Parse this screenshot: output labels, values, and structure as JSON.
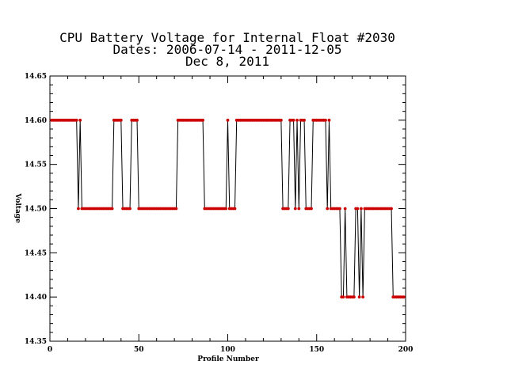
{
  "chart_data": {
    "type": "line",
    "title_lines": [
      "CPU Battery Voltage for Internal Float #2030",
      "Dates:  2006-07-14 -  2011-12-05",
      "Dec  8, 2011"
    ],
    "xlabel": "Profile Number",
    "ylabel": "Voltage",
    "xlim": [
      0,
      200
    ],
    "ylim": [
      14.35,
      14.65
    ],
    "x_ticks": [
      0,
      50,
      100,
      150,
      200
    ],
    "x_tick_labels": [
      "0",
      "50",
      "100",
      "150",
      "200"
    ],
    "y_ticks": [
      14.35,
      14.4,
      14.45,
      14.5,
      14.55,
      14.6,
      14.65
    ],
    "y_tick_labels": [
      "14.35",
      "14.40",
      "14.45",
      "14.50",
      "14.55",
      "14.60",
      "14.65"
    ],
    "grid": false,
    "legend": "none",
    "colors": {
      "line": "#000000",
      "marker": "#cc0000",
      "axis": "#000000"
    },
    "series": [
      {
        "segments": [
          [
            1,
            15,
            14.6
          ],
          [
            16,
            16,
            14.5
          ],
          [
            17,
            17,
            14.6
          ],
          [
            18,
            35,
            14.5
          ],
          [
            36,
            40,
            14.6
          ],
          [
            41,
            45,
            14.5
          ],
          [
            46,
            49,
            14.6
          ],
          [
            50,
            71,
            14.5
          ],
          [
            72,
            86,
            14.6
          ],
          [
            87,
            99,
            14.5
          ],
          [
            100,
            100,
            14.6
          ],
          [
            101,
            104,
            14.5
          ],
          [
            105,
            130,
            14.6
          ],
          [
            131,
            134,
            14.5
          ],
          [
            135,
            137,
            14.6
          ],
          [
            138,
            138,
            14.5
          ],
          [
            139,
            139,
            14.6
          ],
          [
            140,
            140,
            14.5
          ],
          [
            141,
            143,
            14.6
          ],
          [
            144,
            147,
            14.5
          ],
          [
            148,
            155,
            14.6
          ],
          [
            156,
            156,
            14.5
          ],
          [
            157,
            157,
            14.6
          ],
          [
            158,
            163,
            14.5
          ],
          [
            164,
            165,
            14.4
          ],
          [
            166,
            166,
            14.5
          ],
          [
            167,
            171,
            14.4
          ],
          [
            172,
            173,
            14.5
          ],
          [
            174,
            174,
            14.4
          ],
          [
            175,
            175,
            14.5
          ],
          [
            176,
            176,
            14.4
          ],
          [
            177,
            192,
            14.5
          ],
          [
            193,
            199,
            14.4
          ]
        ]
      }
    ]
  }
}
